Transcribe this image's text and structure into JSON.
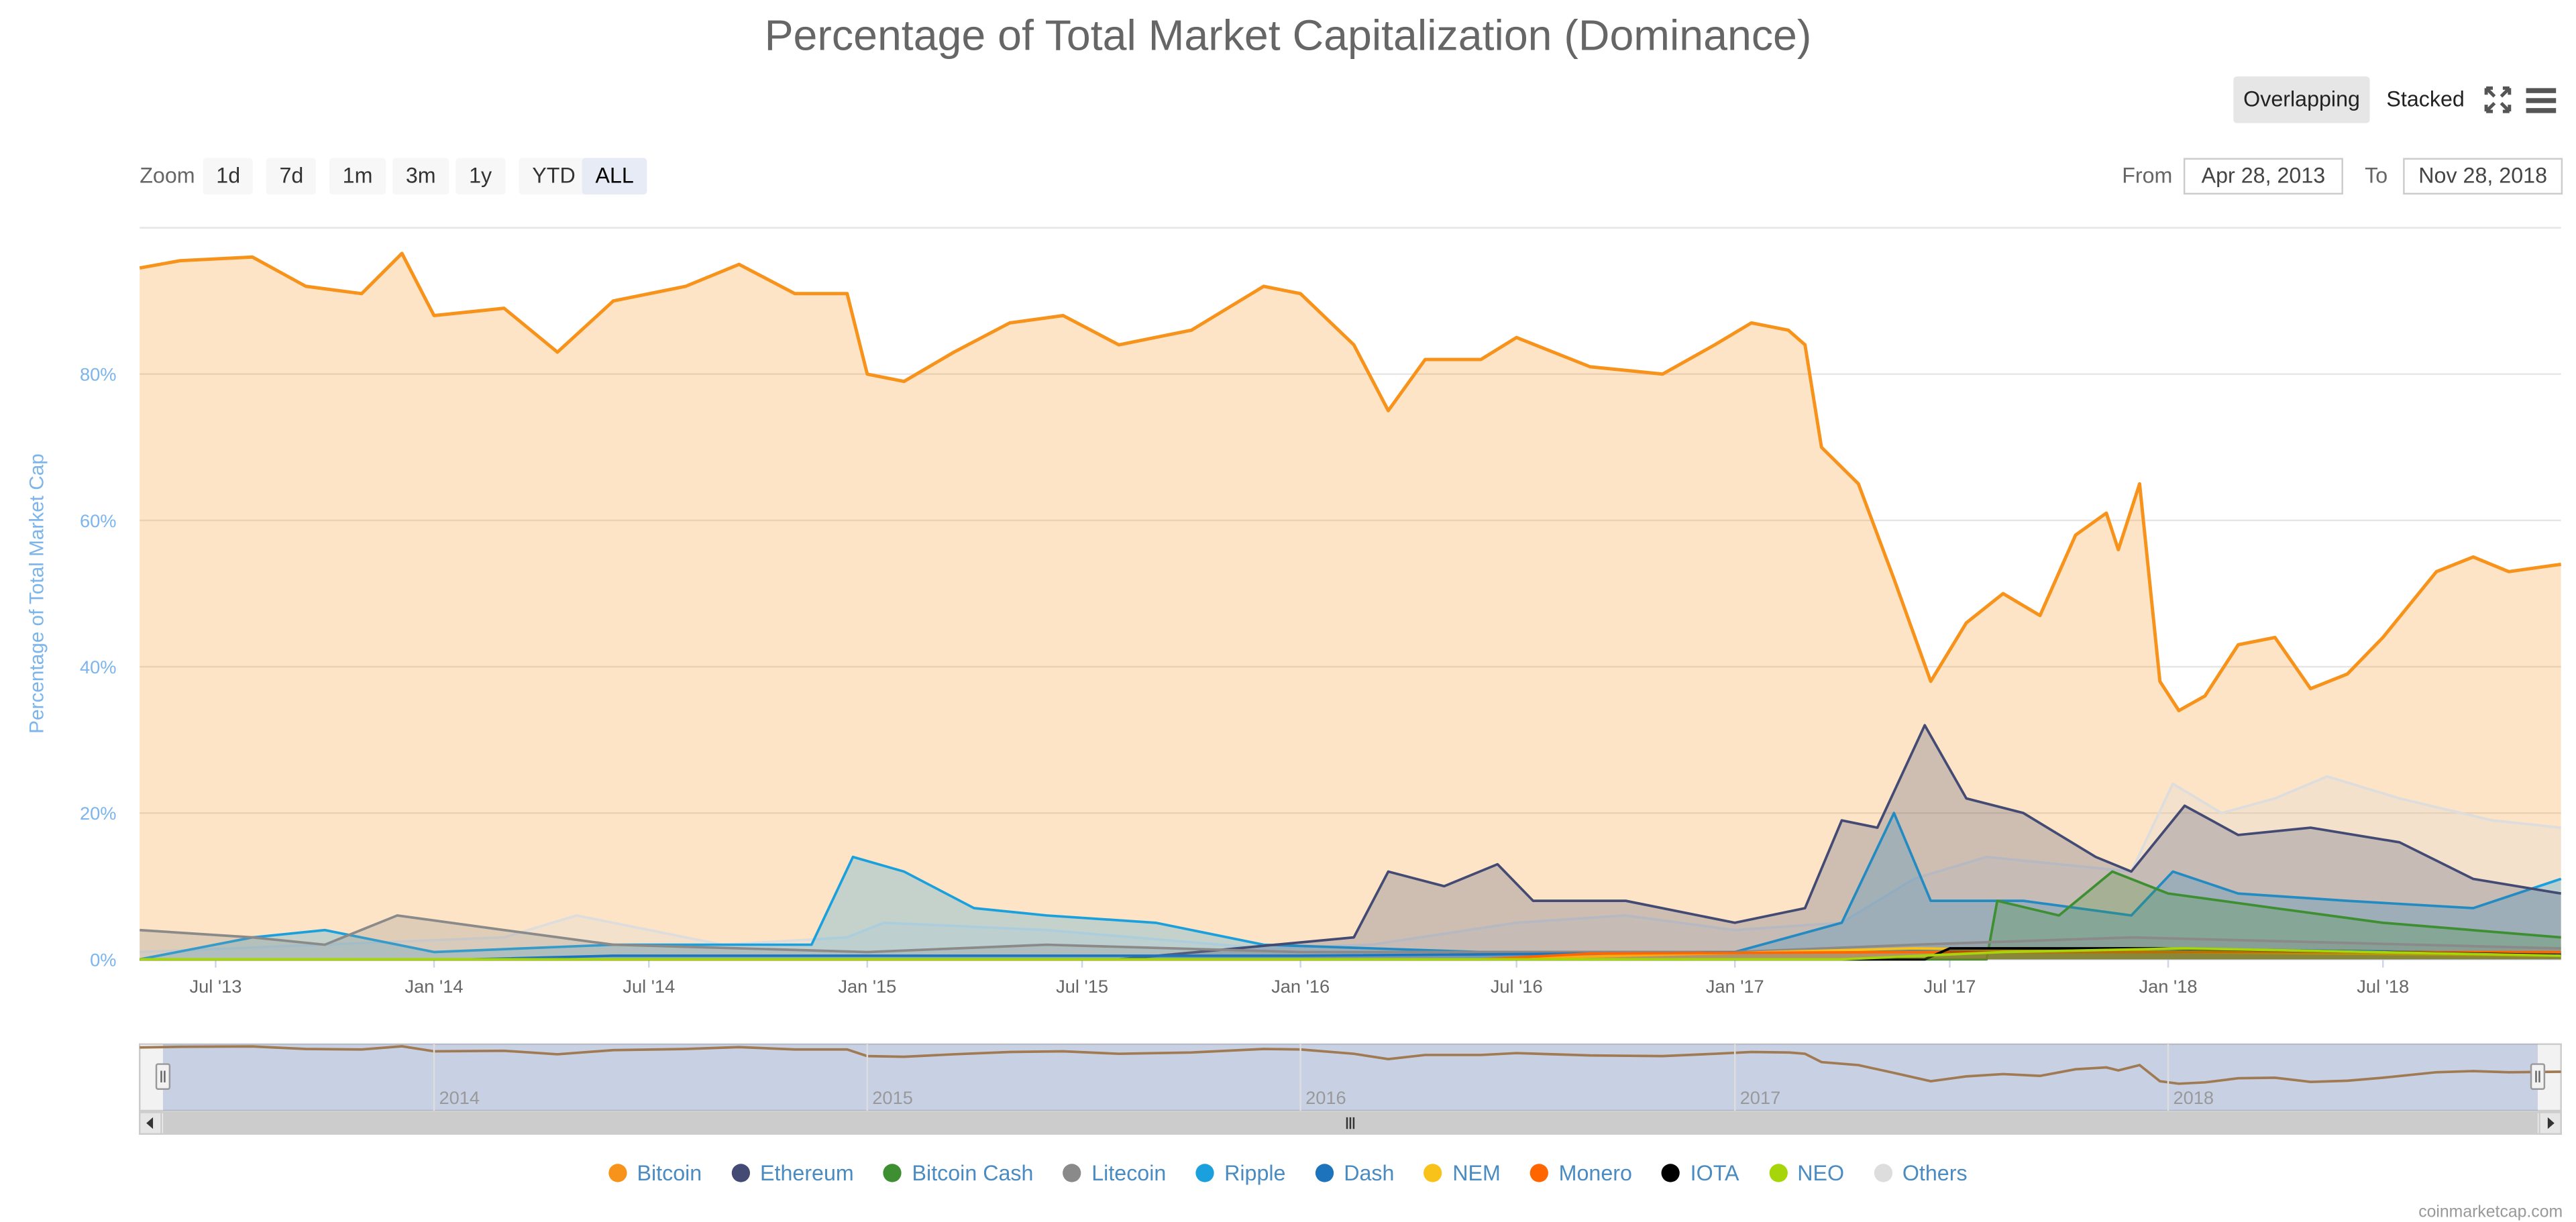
{
  "title": "Percentage of Total Market Capitalization (Dominance)",
  "view_modes": {
    "overlapping": "Overlapping",
    "stacked": "Stacked",
    "active": "overlapping"
  },
  "icons": {
    "fullscreen": "fullscreen-icon",
    "menu": "hamburger-menu-icon"
  },
  "zoom": {
    "label": "Zoom",
    "buttons": [
      "1d",
      "7d",
      "1m",
      "3m",
      "1y",
      "YTD",
      "ALL"
    ],
    "active": "ALL"
  },
  "range": {
    "from_label": "From",
    "from_value": "Apr 28, 2013",
    "to_label": "To",
    "to_value": "Nov 28, 2018"
  },
  "credit": "coinmarketcap.com",
  "navigator": {
    "year_labels": [
      "2014",
      "2015",
      "2016",
      "2017",
      "2018"
    ]
  },
  "colors": {
    "Bitcoin": "#f7931a",
    "Ethereum": "#434a73",
    "Bitcoin Cash": "#3e8f32",
    "Litecoin": "#8a8a8a",
    "Ripple": "#1aa0dc",
    "Dash": "#1c75bc",
    "NEM": "#f9c21a",
    "Monero": "#ff6600",
    "IOTA": "#000000",
    "NEO": "#a6d60a",
    "Others": "#dddddd"
  },
  "chart_data": {
    "type": "area",
    "ylabel": "Percentage of Total Market Cap",
    "ylim": [
      0,
      100
    ],
    "yticks": [
      "0%",
      "20%",
      "40%",
      "60%",
      "80%"
    ],
    "xlim": [
      "2013-04-28",
      "2018-11-28"
    ],
    "xticks": [
      "Jul '13",
      "Jan '14",
      "Jul '14",
      "Jan '15",
      "Jul '15",
      "Jan '16",
      "Jul '16",
      "Jan '17",
      "Jul '17",
      "Jan '18",
      "Jul '18"
    ],
    "grid": true,
    "legend_position": "bottom",
    "series": [
      {
        "name": "Bitcoin",
        "points": [
          [
            "2013-04-28",
            94.5
          ],
          [
            "2013-06-01",
            95.5
          ],
          [
            "2013-08-01",
            96
          ],
          [
            "2013-09-15",
            92
          ],
          [
            "2013-11-01",
            91
          ],
          [
            "2013-12-05",
            96.5
          ],
          [
            "2014-01-01",
            88
          ],
          [
            "2014-03-01",
            89
          ],
          [
            "2014-04-15",
            83
          ],
          [
            "2014-06-01",
            90
          ],
          [
            "2014-08-01",
            92
          ],
          [
            "2014-09-15",
            95
          ],
          [
            "2014-11-01",
            91
          ],
          [
            "2014-12-15",
            91
          ],
          [
            "2015-01-01",
            80
          ],
          [
            "2015-02-01",
            79
          ],
          [
            "2015-03-15",
            83
          ],
          [
            "2015-05-01",
            87
          ],
          [
            "2015-06-15",
            88
          ],
          [
            "2015-08-01",
            84
          ],
          [
            "2015-10-01",
            86
          ],
          [
            "2015-12-01",
            92
          ],
          [
            "2016-01-01",
            91
          ],
          [
            "2016-02-15",
            84
          ],
          [
            "2016-03-15",
            75
          ],
          [
            "2016-04-15",
            82
          ],
          [
            "2016-06-01",
            82
          ],
          [
            "2016-07-01",
            85
          ],
          [
            "2016-09-01",
            81
          ],
          [
            "2016-11-01",
            80
          ],
          [
            "2016-12-15",
            84
          ],
          [
            "2017-01-15",
            87
          ],
          [
            "2017-02-15",
            86
          ],
          [
            "2017-03-01",
            84
          ],
          [
            "2017-03-15",
            70
          ],
          [
            "2017-04-15",
            65
          ],
          [
            "2017-05-15",
            52
          ],
          [
            "2017-06-15",
            38
          ],
          [
            "2017-07-15",
            46
          ],
          [
            "2017-08-15",
            50
          ],
          [
            "2017-09-15",
            47
          ],
          [
            "2017-10-15",
            58
          ],
          [
            "2017-11-10",
            61
          ],
          [
            "2017-11-20",
            56
          ],
          [
            "2017-12-08",
            65
          ],
          [
            "2017-12-25",
            38
          ],
          [
            "2018-01-10",
            34
          ],
          [
            "2018-02-01",
            36
          ],
          [
            "2018-03-01",
            43
          ],
          [
            "2018-04-01",
            44
          ],
          [
            "2018-05-01",
            37
          ],
          [
            "2018-06-01",
            39
          ],
          [
            "2018-07-01",
            44
          ],
          [
            "2018-08-15",
            53
          ],
          [
            "2018-09-15",
            55
          ],
          [
            "2018-10-15",
            53
          ],
          [
            "2018-11-28",
            54
          ]
        ]
      },
      {
        "name": "Others",
        "points": [
          [
            "2013-04-28",
            1
          ],
          [
            "2014-03-01",
            3
          ],
          [
            "2014-05-01",
            6
          ],
          [
            "2014-09-01",
            2
          ],
          [
            "2014-12-15",
            3
          ],
          [
            "2015-01-15",
            5
          ],
          [
            "2015-06-01",
            4
          ],
          [
            "2015-12-01",
            1.5
          ],
          [
            "2016-03-01",
            2
          ],
          [
            "2016-07-01",
            5
          ],
          [
            "2016-10-01",
            6
          ],
          [
            "2017-01-01",
            4
          ],
          [
            "2017-04-01",
            5
          ],
          [
            "2017-06-01",
            11
          ],
          [
            "2017-08-01",
            14
          ],
          [
            "2017-10-01",
            13
          ],
          [
            "2017-12-01",
            12
          ],
          [
            "2018-01-05",
            24
          ],
          [
            "2018-02-15",
            20
          ],
          [
            "2018-04-01",
            22
          ],
          [
            "2018-05-15",
            25
          ],
          [
            "2018-07-15",
            22
          ],
          [
            "2018-10-01",
            19
          ],
          [
            "2018-11-28",
            18
          ]
        ]
      },
      {
        "name": "Ripple",
        "points": [
          [
            "2013-04-28",
            0
          ],
          [
            "2013-08-01",
            3
          ],
          [
            "2013-10-01",
            4
          ],
          [
            "2014-01-01",
            1
          ],
          [
            "2014-06-01",
            2
          ],
          [
            "2014-11-15",
            2
          ],
          [
            "2014-12-20",
            14
          ],
          [
            "2015-02-01",
            12
          ],
          [
            "2015-04-01",
            7
          ],
          [
            "2015-06-01",
            6
          ],
          [
            "2015-09-01",
            5
          ],
          [
            "2015-12-01",
            2
          ],
          [
            "2016-06-01",
            1
          ],
          [
            "2017-01-01",
            1
          ],
          [
            "2017-04-01",
            5
          ],
          [
            "2017-05-15",
            20
          ],
          [
            "2017-06-15",
            8
          ],
          [
            "2017-09-01",
            8
          ],
          [
            "2017-12-01",
            6
          ],
          [
            "2018-01-05",
            12
          ],
          [
            "2018-03-01",
            9
          ],
          [
            "2018-06-01",
            8
          ],
          [
            "2018-09-15",
            7
          ],
          [
            "2018-11-28",
            11
          ]
        ]
      },
      {
        "name": "Ethereum",
        "points": [
          [
            "2013-04-28",
            0
          ],
          [
            "2015-08-01",
            0
          ],
          [
            "2016-02-15",
            3
          ],
          [
            "2016-03-15",
            12
          ],
          [
            "2016-05-01",
            10
          ],
          [
            "2016-06-15",
            13
          ],
          [
            "2016-07-15",
            8
          ],
          [
            "2016-10-01",
            8
          ],
          [
            "2017-01-01",
            5
          ],
          [
            "2017-03-01",
            7
          ],
          [
            "2017-04-01",
            19
          ],
          [
            "2017-05-01",
            18
          ],
          [
            "2017-06-10",
            32
          ],
          [
            "2017-07-15",
            22
          ],
          [
            "2017-09-01",
            20
          ],
          [
            "2017-11-01",
            14
          ],
          [
            "2017-12-01",
            12
          ],
          [
            "2018-01-15",
            21
          ],
          [
            "2018-03-01",
            17
          ],
          [
            "2018-05-01",
            18
          ],
          [
            "2018-07-15",
            16
          ],
          [
            "2018-09-15",
            11
          ],
          [
            "2018-11-28",
            9
          ]
        ]
      },
      {
        "name": "Bitcoin Cash",
        "points": [
          [
            "2013-04-28",
            0
          ],
          [
            "2017-08-01",
            0
          ],
          [
            "2017-08-10",
            8
          ],
          [
            "2017-10-01",
            6
          ],
          [
            "2017-11-15",
            12
          ],
          [
            "2018-01-01",
            9
          ],
          [
            "2018-04-01",
            7
          ],
          [
            "2018-07-01",
            5
          ],
          [
            "2018-11-28",
            3
          ]
        ]
      },
      {
        "name": "Litecoin",
        "points": [
          [
            "2013-04-28",
            4
          ],
          [
            "2013-08-01",
            3
          ],
          [
            "2013-10-01",
            2
          ],
          [
            "2013-12-01",
            6
          ],
          [
            "2014-03-01",
            4
          ],
          [
            "2014-06-01",
            2
          ],
          [
            "2015-01-01",
            1
          ],
          [
            "2015-06-01",
            2
          ],
          [
            "2016-01-01",
            1
          ],
          [
            "2017-01-01",
            1
          ],
          [
            "2017-06-01",
            2
          ],
          [
            "2017-12-01",
            3
          ],
          [
            "2018-11-28",
            1.5
          ]
        ]
      },
      {
        "name": "Dash",
        "points": [
          [
            "2013-04-28",
            0
          ],
          [
            "2014-02-01",
            0
          ],
          [
            "2014-06-01",
            0.5
          ],
          [
            "2016-01-01",
            0.5
          ],
          [
            "2017-03-01",
            1
          ],
          [
            "2017-12-01",
            1.5
          ],
          [
            "2018-11-28",
            0.8
          ]
        ]
      },
      {
        "name": "NEM",
        "points": [
          [
            "2013-04-28",
            0
          ],
          [
            "2016-06-01",
            0
          ],
          [
            "2017-06-01",
            1.5
          ],
          [
            "2018-01-01",
            1
          ],
          [
            "2018-11-28",
            0.5
          ]
        ]
      },
      {
        "name": "Monero",
        "points": [
          [
            "2013-04-28",
            0
          ],
          [
            "2016-06-01",
            0
          ],
          [
            "2016-09-01",
            0.8
          ],
          [
            "2017-06-01",
            1
          ],
          [
            "2018-11-28",
            1
          ]
        ]
      },
      {
        "name": "IOTA",
        "points": [
          [
            "2013-04-28",
            0
          ],
          [
            "2017-06-10",
            0
          ],
          [
            "2017-07-01",
            1.5
          ],
          [
            "2017-12-20",
            1.5
          ],
          [
            "2018-11-28",
            0.6
          ]
        ]
      },
      {
        "name": "NEO",
        "points": [
          [
            "2013-04-28",
            0
          ],
          [
            "2017-04-01",
            0
          ],
          [
            "2017-08-15",
            1
          ],
          [
            "2018-01-15",
            1.5
          ],
          [
            "2018-11-28",
            0.5
          ]
        ]
      }
    ]
  }
}
